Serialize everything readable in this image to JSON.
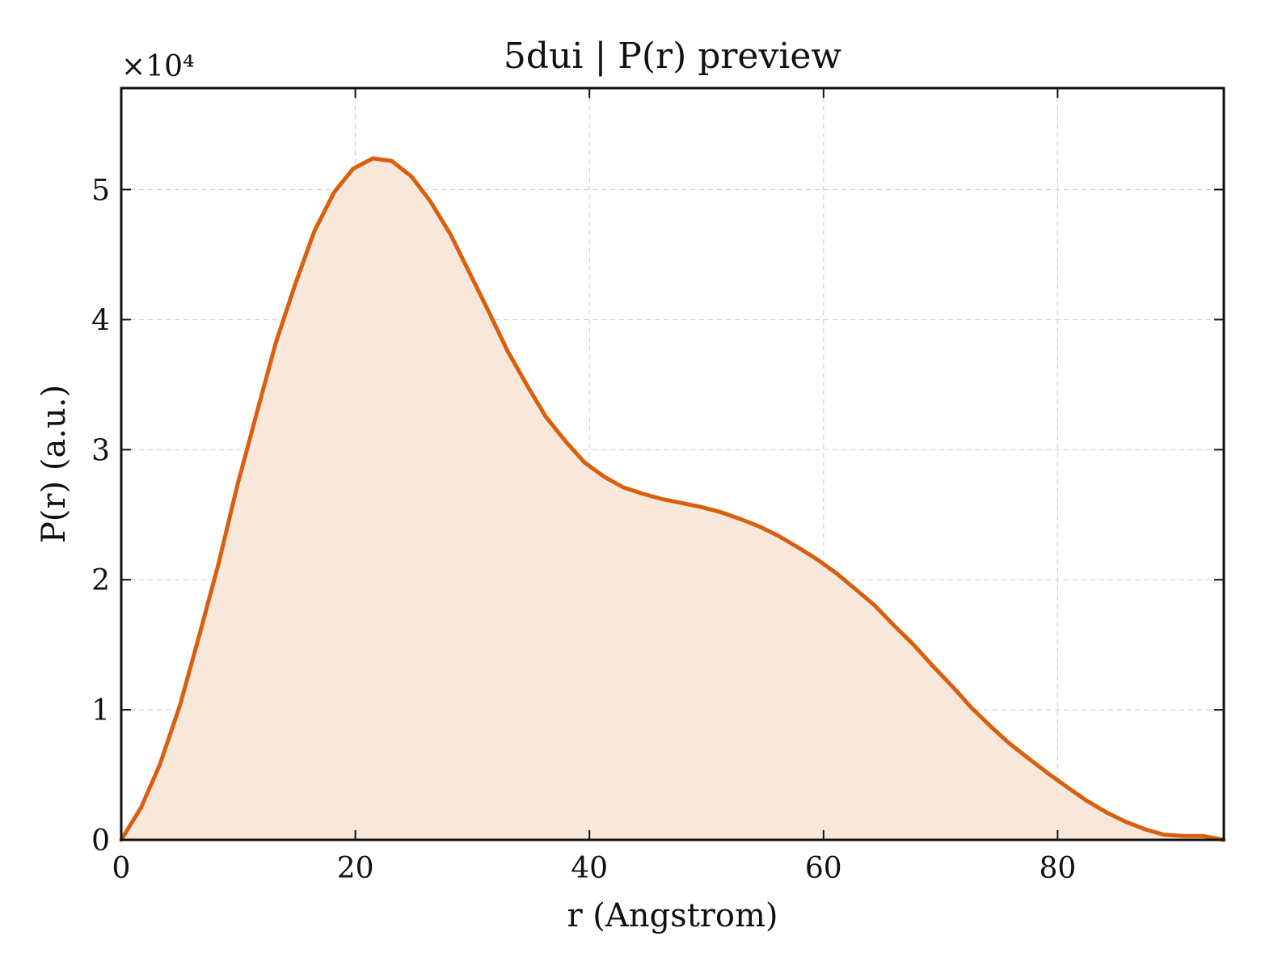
{
  "chart_data": {
    "type": "area",
    "title": "5dui | P(r) preview",
    "xlabel": "r (Angstrom)",
    "ylabel": "P(r) (a.u.)",
    "y_multiplier": "×10⁴",
    "xlim": [
      0,
      94.2
    ],
    "ylim": [
      0,
      5.78
    ],
    "x_ticks": [
      0,
      20,
      40,
      60,
      80
    ],
    "y_ticks": [
      0,
      1,
      2,
      3,
      4,
      5
    ],
    "grid": true,
    "legend": "none",
    "colors": {
      "line": "#d95f0e",
      "fill": "#f8e8dc"
    },
    "series": [
      {
        "x": [
          0,
          1.7,
          3.3,
          5.0,
          6.6,
          8.3,
          9.9,
          11.6,
          13.2,
          14.9,
          16.5,
          18.2,
          19.8,
          21.5,
          23.1,
          24.8,
          26.4,
          28.1,
          29.7,
          31.4,
          33.0,
          34.7,
          36.3,
          38.0,
          39.6,
          41.3,
          42.9,
          44.6,
          46.2,
          47.9,
          49.5,
          51.2,
          52.8,
          54.5,
          56.1,
          57.8,
          59.4,
          61.1,
          62.7,
          64.4,
          66.0,
          67.7,
          69.3,
          71.0,
          72.6,
          74.3,
          75.9,
          77.6,
          79.2,
          80.9,
          82.5,
          84.2,
          85.8,
          87.5,
          89.1,
          90.8,
          92.4,
          94.2
        ],
        "y": [
          0.0,
          0.25,
          0.58,
          1.03,
          1.55,
          2.12,
          2.72,
          3.29,
          3.82,
          4.28,
          4.68,
          4.98,
          5.16,
          5.24,
          5.22,
          5.1,
          4.91,
          4.66,
          4.37,
          4.06,
          3.76,
          3.49,
          3.25,
          3.06,
          2.9,
          2.79,
          2.71,
          2.66,
          2.62,
          2.59,
          2.56,
          2.52,
          2.47,
          2.41,
          2.34,
          2.25,
          2.16,
          2.05,
          1.93,
          1.8,
          1.65,
          1.5,
          1.34,
          1.18,
          1.02,
          0.87,
          0.74,
          0.62,
          0.51,
          0.4,
          0.3,
          0.21,
          0.14,
          0.08,
          0.04,
          0.03,
          0.03,
          0.0
        ]
      }
    ]
  }
}
